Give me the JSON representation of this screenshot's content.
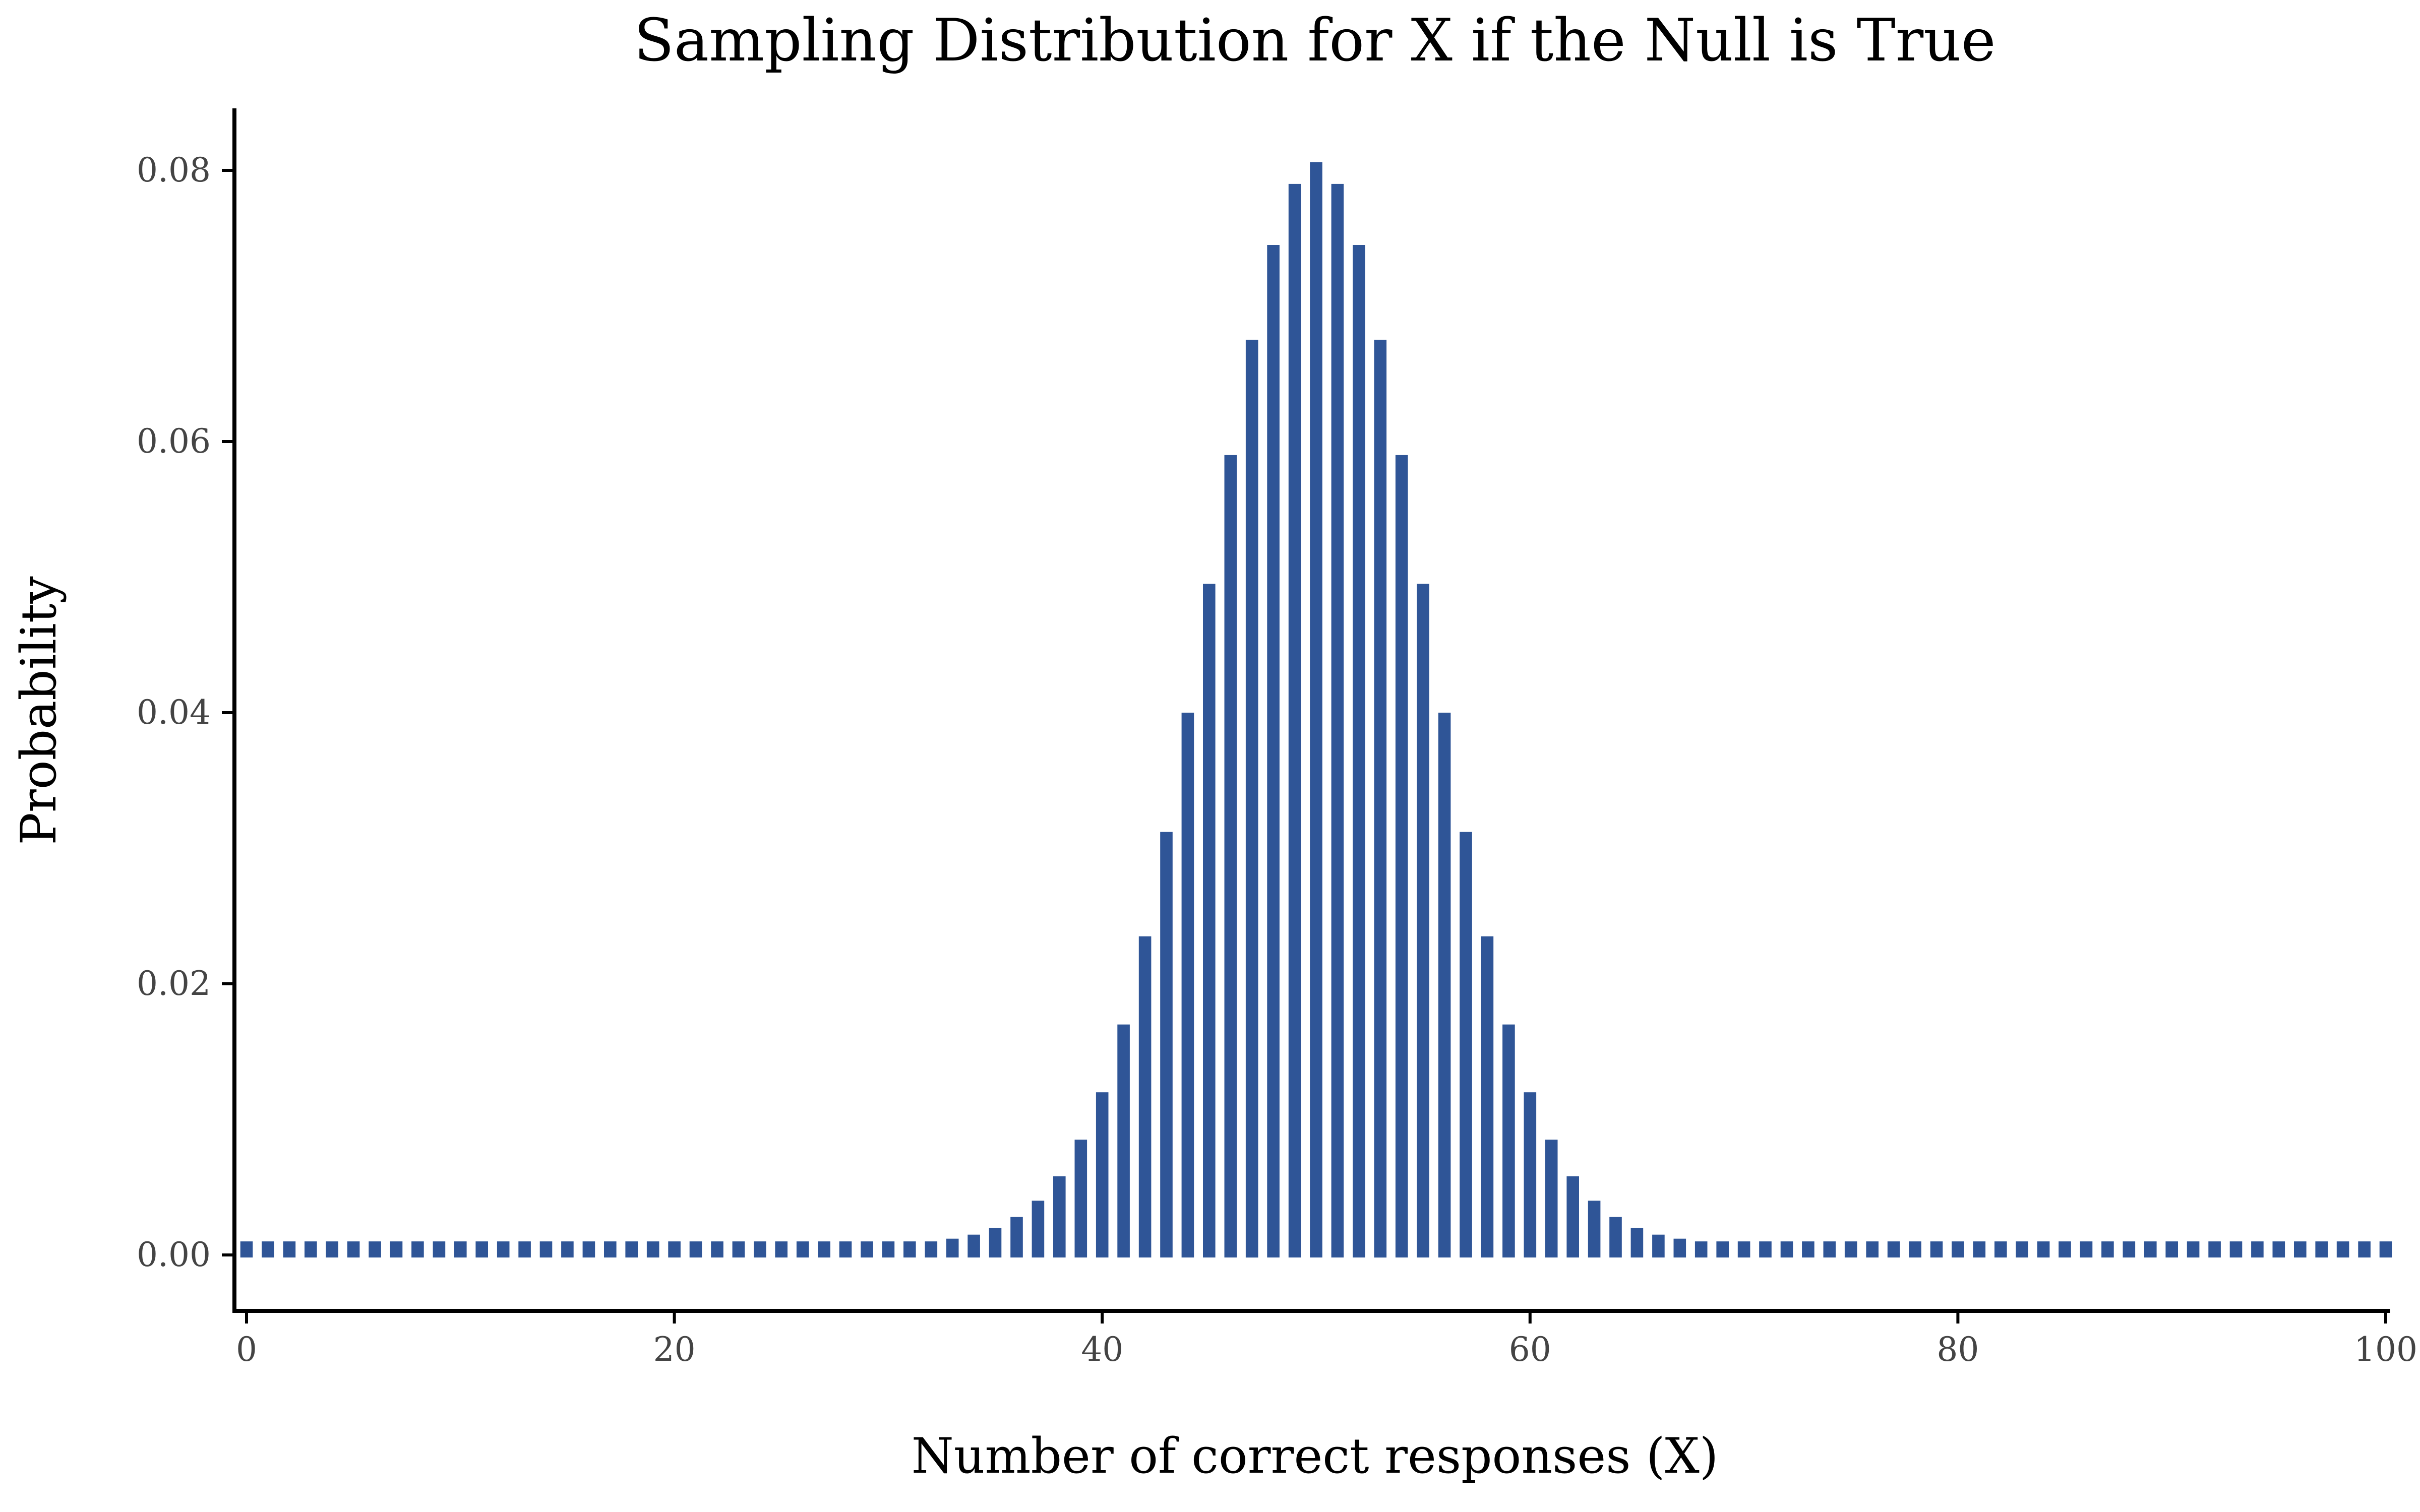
{
  "chart_data": {
    "type": "bar",
    "title": "Sampling Distribution for X if the Null is True",
    "xlabel": "Number of correct responses (X)",
    "ylabel": "Probability",
    "xlim": [
      0,
      100
    ],
    "ylim": [
      0,
      0.08
    ],
    "x_ticks": [
      "0",
      "20",
      "40",
      "60",
      "80",
      "100"
    ],
    "y_ticks": [
      "0.00",
      "0.02",
      "0.04",
      "0.06",
      "0.08"
    ],
    "bar_color": "#2f5597",
    "grid": false,
    "x": [
      0,
      1,
      2,
      3,
      4,
      5,
      6,
      7,
      8,
      9,
      10,
      11,
      12,
      13,
      14,
      15,
      16,
      17,
      18,
      19,
      20,
      21,
      22,
      23,
      24,
      25,
      26,
      27,
      28,
      29,
      30,
      31,
      32,
      33,
      34,
      35,
      36,
      37,
      38,
      39,
      40,
      41,
      42,
      43,
      44,
      45,
      46,
      47,
      48,
      49,
      50,
      51,
      52,
      53,
      54,
      55,
      56,
      57,
      58,
      59,
      60,
      61,
      62,
      63,
      64,
      65,
      66,
      67,
      68,
      69,
      70,
      71,
      72,
      73,
      74,
      75,
      76,
      77,
      78,
      79,
      80,
      81,
      82,
      83,
      84,
      85,
      86,
      87,
      88,
      89,
      90,
      91,
      92,
      93,
      94,
      95,
      96,
      97,
      98,
      99,
      100
    ],
    "values": [
      0.001,
      0.001,
      0.001,
      0.001,
      0.001,
      0.001,
      0.001,
      0.001,
      0.001,
      0.001,
      0.001,
      0.001,
      0.001,
      0.001,
      0.001,
      0.001,
      0.001,
      0.001,
      0.001,
      0.001,
      0.001,
      0.001,
      0.001,
      0.001,
      0.001,
      0.001,
      0.001,
      0.001,
      0.001,
      0.001,
      0.001,
      0.001,
      0.001,
      0.0012,
      0.0015,
      0.002,
      0.0028,
      0.004,
      0.0058,
      0.0085,
      0.012,
      0.017,
      0.0235,
      0.0312,
      0.04,
      0.0495,
      0.059,
      0.0675,
      0.0745,
      0.079,
      0.0806,
      0.079,
      0.0745,
      0.0675,
      0.059,
      0.0495,
      0.04,
      0.0312,
      0.0235,
      0.017,
      0.012,
      0.0085,
      0.0058,
      0.004,
      0.0028,
      0.002,
      0.0015,
      0.0012,
      0.001,
      0.001,
      0.001,
      0.001,
      0.001,
      0.001,
      0.001,
      0.001,
      0.001,
      0.001,
      0.001,
      0.001,
      0.001,
      0.001,
      0.001,
      0.001,
      0.001,
      0.001,
      0.001,
      0.001,
      0.001,
      0.001,
      0.001,
      0.001,
      0.001,
      0.001,
      0.001,
      0.001,
      0.001,
      0.001,
      0.001,
      0.001,
      0.001
    ]
  }
}
